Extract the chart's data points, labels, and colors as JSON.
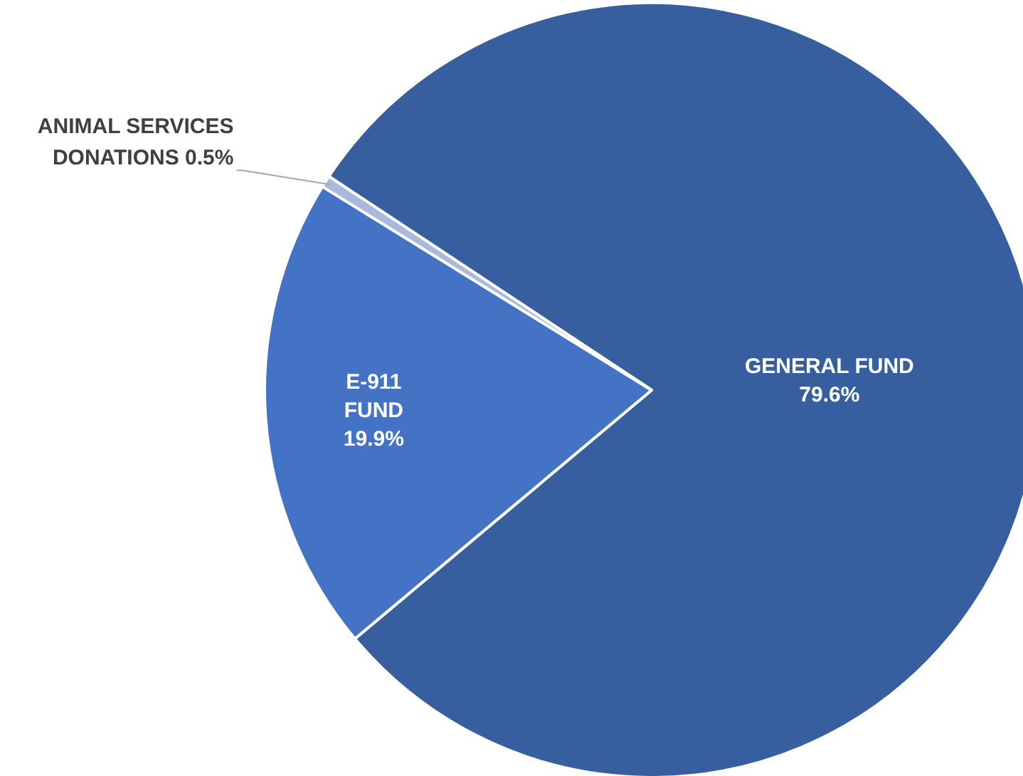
{
  "chart_data": {
    "type": "pie",
    "categories": [
      "GENERAL FUND",
      "E-911 FUND",
      "ANIMAL SERVICES DONATIONS"
    ],
    "values": [
      79.6,
      19.9,
      0.5
    ],
    "colors": [
      "#375e9f",
      "#4472c4",
      "#a9b8dc"
    ],
    "value_labels": [
      "79.6%",
      "19.9%",
      "0.5%"
    ]
  }
}
